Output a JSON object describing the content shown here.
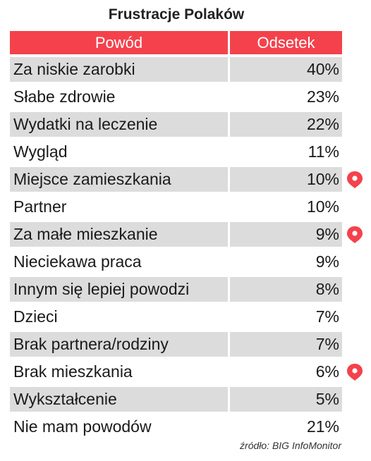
{
  "chart_data": {
    "type": "table",
    "title": "Frustracje Polaków",
    "columns": [
      "Powód",
      "Odsetek"
    ],
    "rows": [
      {
        "reason": "Za niskie zarobki",
        "value": "40%",
        "marker": false
      },
      {
        "reason": "Słabe zdrowie",
        "value": "23%",
        "marker": false
      },
      {
        "reason": "Wydatki na leczenie",
        "value": "22%",
        "marker": false
      },
      {
        "reason": "Wygląd",
        "value": "11%",
        "marker": false
      },
      {
        "reason": "Miejsce zamieszkania",
        "value": "10%",
        "marker": true
      },
      {
        "reason": "Partner",
        "value": "10%",
        "marker": false
      },
      {
        "reason": "Za małe mieszkanie",
        "value": "9%",
        "marker": true
      },
      {
        "reason": "Nieciekawa praca",
        "value": "9%",
        "marker": false
      },
      {
        "reason": "Innym się lepiej powodzi",
        "value": "8%",
        "marker": false
      },
      {
        "reason": "Dzieci",
        "value": "7%",
        "marker": false
      },
      {
        "reason": "Brak partnera/rodziny",
        "value": "7%",
        "marker": false
      },
      {
        "reason": "Brak mieszkania",
        "value": "6%",
        "marker": true
      },
      {
        "reason": "Wykształcenie",
        "value": "5%",
        "marker": false
      },
      {
        "reason": "Nie mam powodów",
        "value": "21%",
        "marker": false
      }
    ],
    "source": "źródło: BIG InfoMonitor"
  },
  "colors": {
    "header": "#f4424c",
    "row_shade": "#dcdcdc",
    "marker": "#f4424c"
  },
  "icons": {
    "marker": "location-pin-icon"
  }
}
